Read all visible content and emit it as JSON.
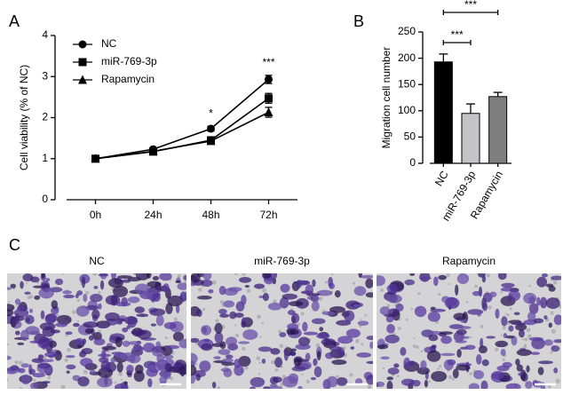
{
  "chart_data": [
    {
      "type": "line",
      "panel": "A",
      "ylabel": "Cell viability (% of NC)",
      "categories": [
        "0h",
        "24h",
        "48h",
        "72h"
      ],
      "series": [
        {
          "name": "NC",
          "color": "#000000",
          "marker": "circle",
          "values": [
            1.0,
            1.23,
            1.73,
            2.93
          ],
          "errors": [
            0.03,
            0.04,
            0.06,
            0.1
          ]
        },
        {
          "name": "miR-769-3p",
          "color": "#000000",
          "marker": "square",
          "values": [
            1.0,
            1.17,
            1.45,
            2.47
          ],
          "errors": [
            0.03,
            0.04,
            0.05,
            0.12
          ]
        },
        {
          "name": "Rapamycin",
          "color": "#000000",
          "marker": "triangle",
          "values": [
            1.0,
            1.18,
            1.43,
            2.13
          ],
          "errors": [
            0.03,
            0.04,
            0.05,
            0.12
          ]
        }
      ],
      "significance": [
        null,
        null,
        "*",
        "***"
      ],
      "ylim": [
        0,
        4
      ],
      "yticks": [
        0,
        1,
        2,
        3,
        4
      ],
      "grid": false,
      "legend": "top-left"
    },
    {
      "type": "bar",
      "panel": "B",
      "ylabel": "Migration cell number",
      "categories": [
        "NC",
        "miR-769-3p",
        "Rapamycin"
      ],
      "values": [
        193,
        95,
        127
      ],
      "errors": [
        15,
        18,
        8
      ],
      "colors": [
        "#000000",
        "#c4c4c8",
        "#7f7f7f"
      ],
      "brackets": [
        "***",
        "***"
      ],
      "ylim": [
        0,
        250
      ],
      "yticks": [
        0,
        50,
        100,
        150,
        200,
        250
      ],
      "grid": false
    }
  ],
  "panel_c": {
    "label": "C",
    "titles": [
      "NC",
      "miR-769-3p",
      "Rapamycin"
    ]
  }
}
